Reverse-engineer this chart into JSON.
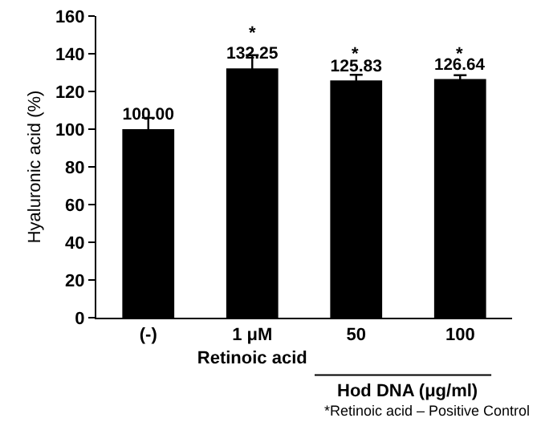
{
  "chart_data": {
    "type": "bar",
    "ylabel": "Hyaluronic acid (%)",
    "xlabel": "Hod DNA (μg/ml)",
    "categories": [
      "(-)",
      "1 μM\nRetinoic acid",
      "50",
      "100"
    ],
    "values": [
      100,
      132.25,
      125.83,
      126.64
    ],
    "errors": [
      6,
      7,
      3,
      2
    ],
    "value_labels": [
      "100.00",
      "132.25",
      "125.83",
      "126.64"
    ],
    "color": "#000000",
    "ylim": [
      0,
      160
    ],
    "yticks": [
      0,
      20,
      40,
      60,
      80,
      100,
      120,
      140,
      160
    ],
    "grid": false,
    "legend": false,
    "annotations": [
      "*",
      "*",
      "*",
      "*Retinoic acid – Positive Control"
    ]
  }
}
